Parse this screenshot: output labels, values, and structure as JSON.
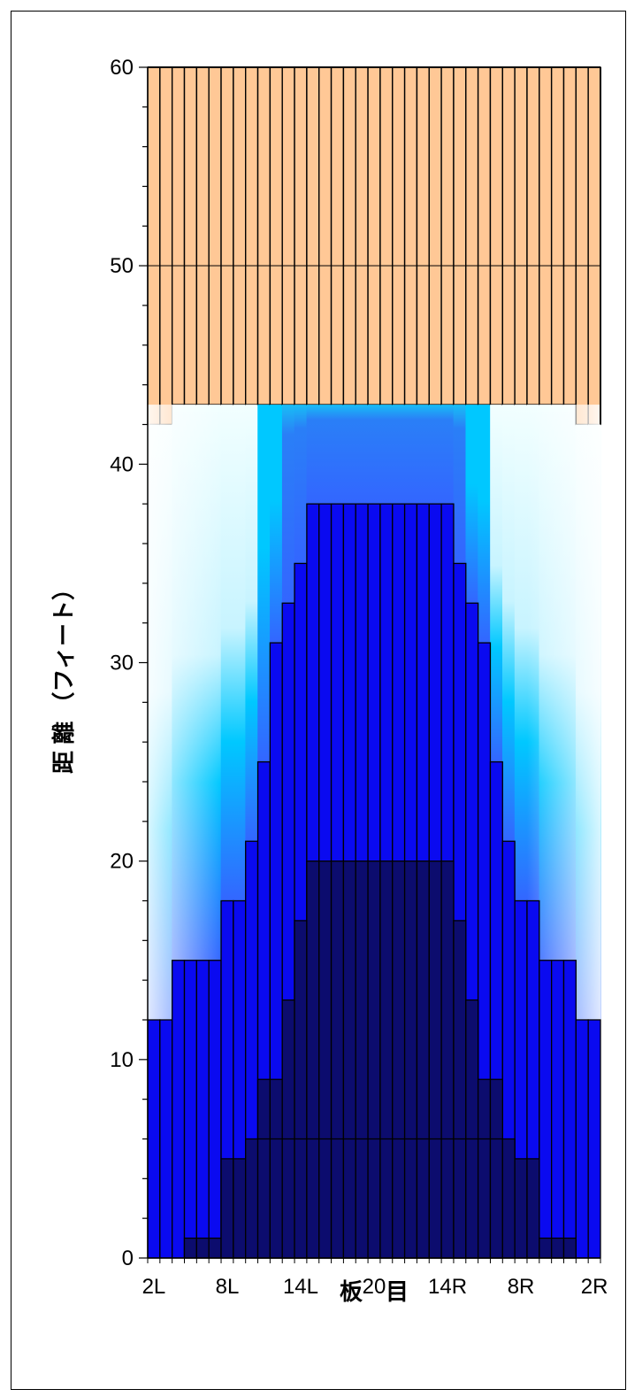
{
  "chart_data": {
    "type": "bar",
    "title": "",
    "xlabel": "板　目",
    "ylabel": "距 離 （フィート）",
    "ylim": [
      0,
      60
    ],
    "yticks": [
      0,
      10,
      20,
      30,
      40,
      50,
      60
    ],
    "x_tick_labels": [
      "2L",
      "8L",
      "14L",
      "20",
      "14R",
      "8R",
      "2R"
    ],
    "x_tick_board_index": [
      0,
      6,
      12,
      18,
      24,
      30,
      36
    ],
    "boards": 37,
    "grid": "horizontal line at 50",
    "series": [
      {
        "name": "",
        "values": [
          0,
          0,
          0,
          1,
          1,
          1,
          5,
          5,
          6,
          6,
          6,
          6,
          6,
          6,
          6,
          6,
          6,
          6,
          6,
          6,
          6,
          6,
          6,
          6,
          6,
          6,
          6,
          6,
          6,
          6,
          5,
          5,
          1,
          1,
          1,
          0,
          0
        ]
      },
      {
        "name": "",
        "values": [
          0,
          0,
          0,
          0,
          0,
          0,
          0,
          0,
          0,
          9,
          9,
          13,
          17,
          20,
          20,
          20,
          20,
          20,
          20,
          20,
          20,
          20,
          20,
          20,
          20,
          17,
          13,
          9,
          9,
          0,
          0,
          0,
          0,
          0,
          0,
          0,
          0
        ]
      },
      {
        "name": "",
        "values": [
          12,
          12,
          15,
          15,
          15,
          15,
          18,
          18,
          21,
          25,
          31,
          33,
          35,
          38,
          38,
          38,
          38,
          38,
          38,
          38,
          38,
          38,
          38,
          38,
          38,
          35,
          33,
          31,
          25,
          21,
          18,
          18,
          15,
          15,
          15,
          12,
          12
        ]
      },
      {
        "name": "",
        "values": [
          42,
          42,
          43,
          43,
          43,
          43,
          43,
          43,
          43,
          43,
          43,
          43,
          43,
          43,
          43,
          43,
          43,
          43,
          43,
          43,
          43,
          43,
          43,
          43,
          43,
          43,
          43,
          43,
          43,
          43,
          43,
          43,
          43,
          43,
          43,
          42,
          42
        ]
      },
      {
        "name": "",
        "values": [
          60,
          60,
          60,
          60,
          60,
          60,
          60,
          60,
          60,
          60,
          60,
          60,
          60,
          60,
          60,
          60,
          60,
          60,
          60,
          60,
          60,
          60,
          60,
          60,
          60,
          60,
          60,
          60,
          60,
          60,
          60,
          60,
          60,
          60,
          60,
          60,
          60
        ]
      }
    ],
    "colors": {
      "heads": "#0c0c6e",
      "front": "#0a0af0",
      "mid_blue": "#3366ff",
      "cyan": "#00c8ff",
      "pale": "#e8ffff",
      "upper": "#ffc896",
      "line": "#000000"
    }
  }
}
